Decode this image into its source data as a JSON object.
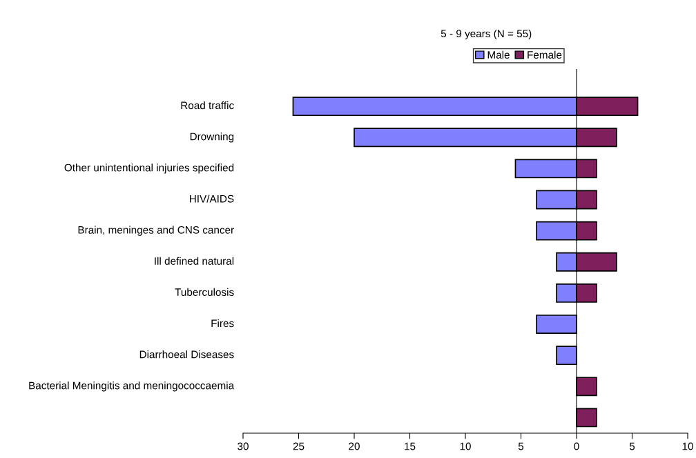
{
  "chart_data": {
    "type": "bar",
    "orientation": "horizontal",
    "stacked": true,
    "title": "5 - 9 years (N = 55)",
    "categories": [
      "Road traffic",
      "Drowning",
      "Other unintentional injuries specified",
      "HIV/AIDS",
      "Brain, meninges and CNS cancer",
      "Ill defined natural",
      "Tuberculosis",
      "Fires",
      "Diarrhoeal Diseases",
      "Bacterial Meningitis and meningococcaemia",
      null
    ],
    "series": [
      {
        "name": "Male",
        "color": "#8080ff",
        "values": [
          -25.5,
          -20,
          -5.5,
          -3.6,
          -3.6,
          -1.8,
          -1.8,
          -3.6,
          -1.8,
          null,
          null
        ]
      },
      {
        "name": "Female",
        "color": "#7f1f5c",
        "values": [
          5.5,
          3.6,
          1.8,
          1.8,
          1.8,
          3.6,
          1.8,
          null,
          null,
          1.8,
          1.8
        ]
      }
    ],
    "xlim": [
      -30,
      10
    ],
    "xticks": [
      {
        "value": -30,
        "label": "30"
      },
      {
        "value": -25,
        "label": "25"
      },
      {
        "value": -20,
        "label": "20"
      },
      {
        "value": -15,
        "label": "15"
      },
      {
        "value": -10,
        "label": "10"
      },
      {
        "value": -5,
        "label": "5"
      },
      0,
      5,
      10
    ],
    "ref_lines": [
      {
        "axis": "x",
        "value": 0,
        "color": "#555555"
      }
    ],
    "grid": false,
    "legend": "top"
  }
}
